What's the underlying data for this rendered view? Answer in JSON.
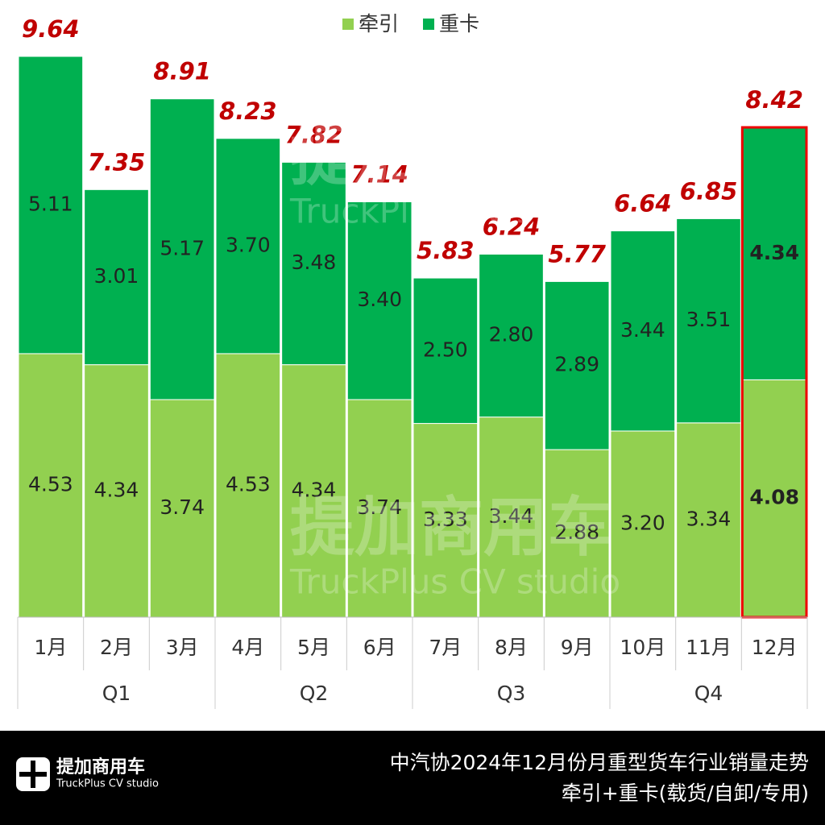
{
  "chart_data": {
    "type": "stacked_bar",
    "categories": [
      "1月",
      "2月",
      "3月",
      "4月",
      "5月",
      "6月",
      "7月",
      "8月",
      "9月",
      "10月",
      "11月",
      "12月"
    ],
    "groups": [
      "Q1",
      "Q2",
      "Q3",
      "Q4"
    ],
    "series": [
      {
        "name": "牵引",
        "color": "#92d050",
        "values": [
          4.53,
          4.34,
          3.74,
          4.53,
          4.34,
          3.74,
          3.33,
          3.44,
          2.88,
          3.2,
          3.34,
          4.08
        ],
        "value_labels": [
          "4.53",
          "4.34",
          "3.74",
          "4.53",
          "4.34",
          "3.74",
          "3.33",
          "3.44",
          "2.88",
          "3.20",
          "3.34",
          "4.08"
        ]
      },
      {
        "name": "重卡",
        "color": "#00b050",
        "values": [
          5.11,
          3.01,
          5.17,
          3.7,
          3.48,
          3.4,
          2.5,
          2.8,
          2.89,
          3.44,
          3.51,
          4.34
        ],
        "value_labels": [
          "5.11",
          "3.01",
          "5.17",
          "3.70",
          "3.48",
          "3.40",
          "2.50",
          "2.80",
          "2.89",
          "3.44",
          "3.51",
          "4.34"
        ]
      }
    ],
    "totals": [
      9.64,
      7.35,
      8.91,
      8.23,
      7.82,
      7.14,
      5.83,
      6.24,
      5.77,
      6.64,
      6.85,
      8.42
    ],
    "totals_color": "#c00000",
    "highlight_index": 11,
    "ylim": [
      0,
      10
    ]
  },
  "footer": {
    "logo": "提加商用车",
    "logo_sub": "TruckPlus CV studio",
    "title": "中汽协2024年12月份月重型货车行业销量走势",
    "subtitle": "牵引+重卡(载货/自卸/专用)"
  }
}
